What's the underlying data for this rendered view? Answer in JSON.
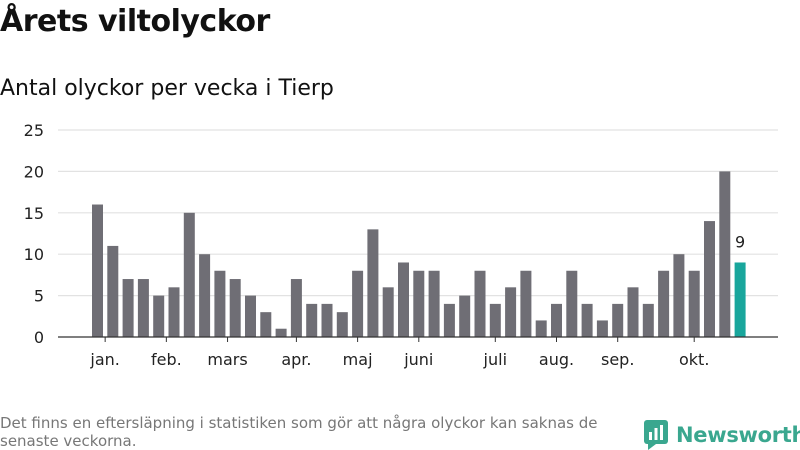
{
  "title": "Årets viltolyckor",
  "subtitle": "Antal olyckor per vecka i Tierp",
  "footnote": "Det finns en eftersläpning i statistiken som gör att några olyckor kan saknas de senaste veckorna.",
  "brand": {
    "name": "Newsworthy",
    "color": "#3aa78f",
    "logo_icon": "bar-chart-logo-icon"
  },
  "colors": {
    "bar": "#6f6e75",
    "highlight": "#19a69c",
    "grid": "#e2e2e2",
    "axis": "#333333"
  },
  "chart_data": {
    "type": "bar",
    "title": "Antal olyckor per vecka i Tierp",
    "xlabel": "",
    "ylabel": "",
    "ylim": [
      0,
      25
    ],
    "yticks": [
      "0",
      "5",
      "10",
      "15",
      "20",
      "25"
    ],
    "grid": true,
    "values": [
      16,
      11,
      7,
      7,
      5,
      6,
      15,
      10,
      8,
      7,
      5,
      3,
      1,
      7,
      4,
      4,
      3,
      8,
      13,
      6,
      9,
      8,
      8,
      4,
      5,
      8,
      4,
      6,
      8,
      2,
      4,
      8,
      4,
      2,
      4,
      6,
      4,
      8,
      10,
      8,
      14,
      20,
      9
    ],
    "highlight_index": 42,
    "highlight_label": "9",
    "month_labels": [
      {
        "label": "jan.",
        "index": 0.5
      },
      {
        "label": "feb.",
        "index": 4.5
      },
      {
        "label": "mars",
        "index": 8.5
      },
      {
        "label": "apr.",
        "index": 13.0
      },
      {
        "label": "maj",
        "index": 17.0
      },
      {
        "label": "juni",
        "index": 21.0
      },
      {
        "label": "juli",
        "index": 26.0
      },
      {
        "label": "aug.",
        "index": 30.0
      },
      {
        "label": "sep.",
        "index": 34.0
      },
      {
        "label": "okt.",
        "index": 39.0
      }
    ]
  }
}
